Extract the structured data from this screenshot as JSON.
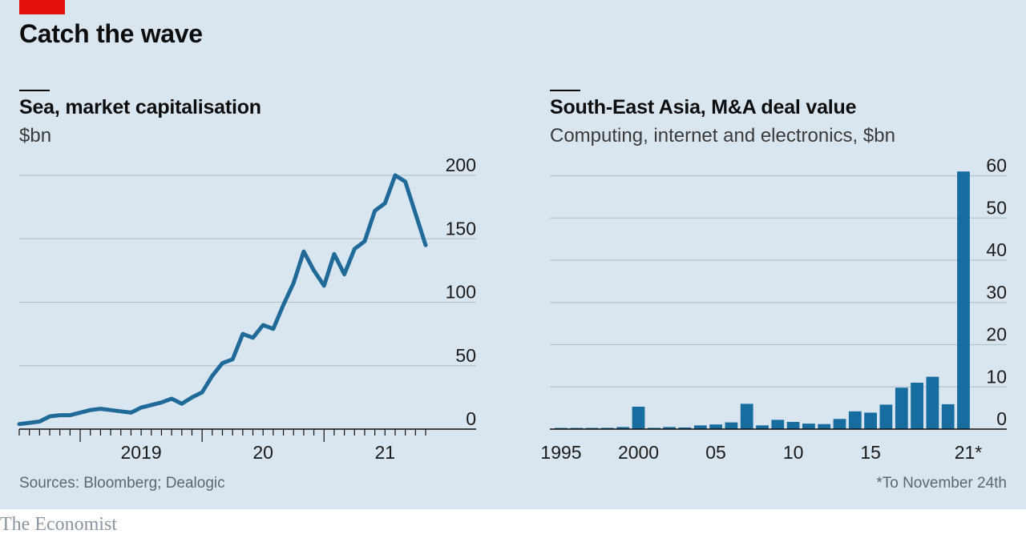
{
  "title": "Catch the wave",
  "left_panel": {
    "title": "Sea, market capitalisation",
    "unit": "$bn"
  },
  "right_panel": {
    "title": "South-East Asia, M&A deal value",
    "unit": "Computing, internet and electronics, $bn"
  },
  "source": "Sources: Bloomberg; Dealogic",
  "footnote": "*To November 24th",
  "brand": "The Economist",
  "colors": {
    "background": "#d9e6ef",
    "series": "#1f6a99",
    "bar": "#176da0",
    "accent_tag": "#e3120b",
    "grid": "#b5c2cc"
  },
  "chart_data": [
    {
      "type": "line",
      "title": "Sea, market capitalisation",
      "ylabel": "$bn",
      "ylim": [
        0,
        200
      ],
      "yticks": [
        0,
        50,
        100,
        150,
        200
      ],
      "xlim": [
        "2018-07",
        "2021-11"
      ],
      "xticks": [
        {
          "label": "2019",
          "date": "2019-01"
        },
        {
          "label": "20",
          "date": "2020-01"
        },
        {
          "label": "21",
          "date": "2021-01"
        }
      ],
      "series": [
        {
          "points": [
            [
              "2018-07",
              4
            ],
            [
              "2018-08",
              5
            ],
            [
              "2018-09",
              6
            ],
            [
              "2018-10",
              10
            ],
            [
              "2018-11",
              11
            ],
            [
              "2018-12",
              11
            ],
            [
              "2019-01",
              13
            ],
            [
              "2019-02",
              15
            ],
            [
              "2019-03",
              16
            ],
            [
              "2019-04",
              15
            ],
            [
              "2019-05",
              14
            ],
            [
              "2019-06",
              13
            ],
            [
              "2019-07",
              17
            ],
            [
              "2019-08",
              19
            ],
            [
              "2019-09",
              21
            ],
            [
              "2019-10",
              24
            ],
            [
              "2019-11",
              20
            ],
            [
              "2019-12",
              25
            ],
            [
              "2020-01",
              29
            ],
            [
              "2020-02",
              42
            ],
            [
              "2020-03",
              52
            ],
            [
              "2020-04",
              55
            ],
            [
              "2020-05",
              75
            ],
            [
              "2020-06",
              72
            ],
            [
              "2020-07",
              82
            ],
            [
              "2020-08",
              79
            ],
            [
              "2020-09",
              98
            ],
            [
              "2020-10",
              115
            ],
            [
              "2020-11",
              140
            ],
            [
              "2020-12",
              125
            ],
            [
              "2021-01",
              113
            ],
            [
              "2021-02",
              138
            ],
            [
              "2021-03",
              122
            ],
            [
              "2021-04",
              142
            ],
            [
              "2021-05",
              148
            ],
            [
              "2021-06",
              172
            ],
            [
              "2021-07",
              178
            ],
            [
              "2021-08",
              200
            ],
            [
              "2021-09",
              195
            ],
            [
              "2021-10",
              170
            ],
            [
              "2021-11",
              145
            ]
          ]
        }
      ]
    },
    {
      "type": "bar",
      "title": "South-East Asia, M&A deal value",
      "ylabel": "Computing, internet and electronics, $bn",
      "ylim": [
        0,
        60
      ],
      "yticks": [
        0,
        10,
        20,
        30,
        40,
        50,
        60
      ],
      "categories": [
        1995,
        1996,
        1997,
        1998,
        1999,
        2000,
        2001,
        2002,
        2003,
        2004,
        2005,
        2006,
        2007,
        2008,
        2009,
        2010,
        2011,
        2012,
        2013,
        2014,
        2015,
        2016,
        2017,
        2018,
        2019,
        2020,
        2021
      ],
      "xtick_labels": [
        {
          "label": "1995",
          "year": 1995
        },
        {
          "label": "2000",
          "year": 2000
        },
        {
          "label": "05",
          "year": 2005
        },
        {
          "label": "10",
          "year": 2010
        },
        {
          "label": "15",
          "year": 2015
        },
        {
          "label": "21*",
          "year": 2021
        }
      ],
      "values": [
        0.1,
        0.2,
        0.2,
        0.3,
        0.5,
        5.3,
        0.3,
        0.5,
        0.4,
        0.9,
        1.1,
        1.6,
        6.0,
        0.9,
        2.2,
        1.7,
        1.3,
        1.2,
        2.4,
        4.2,
        3.9,
        5.8,
        9.8,
        11.0,
        12.4,
        5.9,
        61.0
      ]
    }
  ]
}
